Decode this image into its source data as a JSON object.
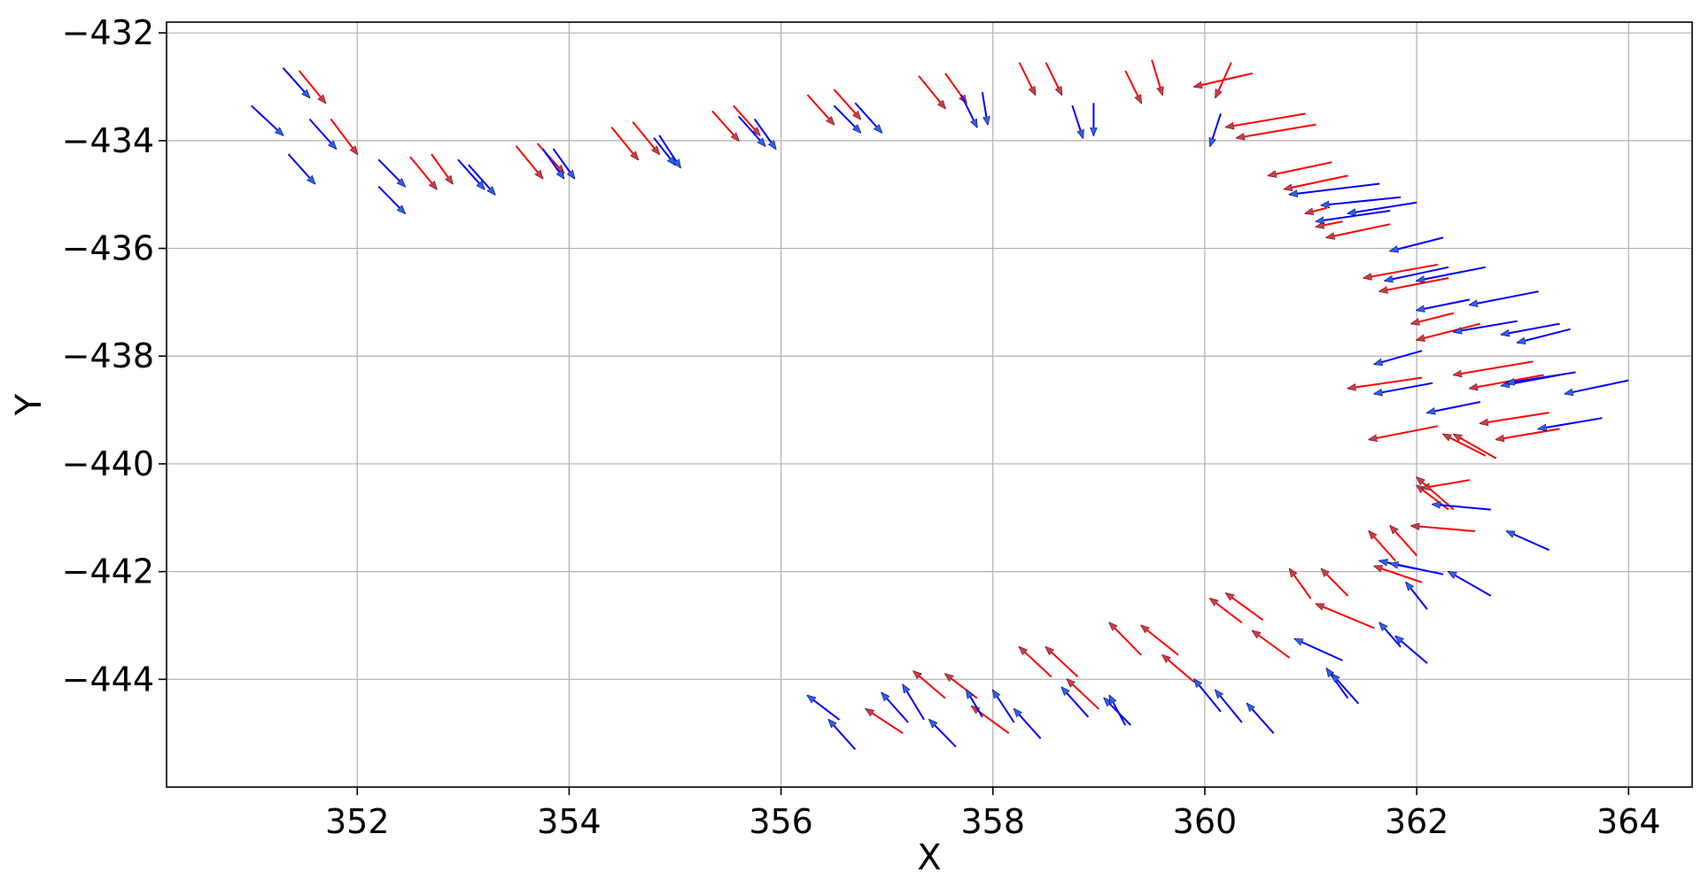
{
  "chart_data": {
    "type": "quiver",
    "xlabel": "X",
    "ylabel": "Y",
    "xlim": [
      350.2,
      364.6
    ],
    "ylim": [
      -446.0,
      -431.8
    ],
    "xticks": [
      352,
      354,
      356,
      358,
      360,
      362,
      364
    ],
    "yticks": [
      -432,
      -434,
      -436,
      -438,
      -440,
      -442,
      -444
    ],
    "ytick_labels": [
      "−432",
      "−434",
      "−436",
      "−438",
      "−440",
      "−442",
      "−444"
    ],
    "grid": true,
    "colors": {
      "red": "#ff0000",
      "blue": "#0000ff",
      "red_head": "#c04050",
      "blue_head": "#3060e0"
    },
    "series": [
      {
        "color": "red",
        "arrows": [
          [
            351.45,
            -432.7,
            351.7,
            -433.3
          ],
          [
            351.75,
            -433.6,
            352.0,
            -434.25
          ],
          [
            352.5,
            -434.3,
            352.75,
            -434.9
          ],
          [
            352.7,
            -434.25,
            352.9,
            -434.8
          ],
          [
            353.5,
            -434.1,
            353.75,
            -434.7
          ],
          [
            353.7,
            -434.05,
            353.95,
            -434.6
          ],
          [
            354.4,
            -433.75,
            354.65,
            -434.35
          ],
          [
            354.6,
            -433.65,
            354.85,
            -434.25
          ],
          [
            355.35,
            -433.45,
            355.6,
            -434.0
          ],
          [
            355.55,
            -433.35,
            355.8,
            -433.9
          ],
          [
            356.25,
            -433.15,
            356.5,
            -433.7
          ],
          [
            356.5,
            -433.05,
            356.75,
            -433.6
          ],
          [
            357.3,
            -432.8,
            357.55,
            -433.4
          ],
          [
            357.55,
            -432.75,
            357.75,
            -433.3
          ],
          [
            358.25,
            -432.55,
            358.4,
            -433.15
          ],
          [
            358.5,
            -432.55,
            358.65,
            -433.15
          ],
          [
            359.25,
            -432.7,
            359.4,
            -433.3
          ],
          [
            359.5,
            -432.5,
            359.6,
            -433.15
          ],
          [
            360.45,
            -432.75,
            359.9,
            -433.0
          ],
          [
            360.25,
            -432.55,
            360.1,
            -433.2
          ],
          [
            360.95,
            -433.5,
            360.2,
            -433.75
          ],
          [
            361.05,
            -433.7,
            360.3,
            -433.95
          ],
          [
            361.2,
            -434.4,
            360.6,
            -434.65
          ],
          [
            361.35,
            -434.65,
            360.75,
            -434.9
          ],
          [
            361.15,
            -435.25,
            360.95,
            -435.35
          ],
          [
            361.3,
            -435.5,
            361.05,
            -435.6
          ],
          [
            361.75,
            -435.55,
            361.15,
            -435.8
          ],
          [
            362.2,
            -436.3,
            361.5,
            -436.55
          ],
          [
            362.3,
            -436.55,
            361.65,
            -436.8
          ],
          [
            362.35,
            -437.2,
            361.95,
            -437.4
          ],
          [
            362.6,
            -437.4,
            362.0,
            -437.7
          ],
          [
            363.1,
            -438.1,
            362.35,
            -438.35
          ],
          [
            363.2,
            -438.35,
            362.5,
            -438.6
          ],
          [
            362.05,
            -438.4,
            361.35,
            -438.6
          ],
          [
            362.2,
            -439.3,
            361.55,
            -439.55
          ],
          [
            363.25,
            -439.05,
            362.6,
            -439.25
          ],
          [
            363.35,
            -439.35,
            362.75,
            -439.55
          ],
          [
            362.75,
            -439.9,
            362.35,
            -439.45
          ],
          [
            362.65,
            -439.85,
            362.25,
            -439.45
          ],
          [
            362.35,
            -440.85,
            362.0,
            -440.25
          ],
          [
            362.3,
            -440.85,
            362.0,
            -440.4
          ],
          [
            362.5,
            -440.3,
            362.05,
            -440.45
          ],
          [
            362.55,
            -441.25,
            361.95,
            -441.15
          ],
          [
            362.0,
            -441.7,
            361.75,
            -441.15
          ],
          [
            361.8,
            -441.8,
            361.55,
            -441.25
          ],
          [
            362.05,
            -442.2,
            361.6,
            -441.9
          ],
          [
            361.0,
            -442.5,
            360.8,
            -441.95
          ],
          [
            361.35,
            -442.45,
            361.1,
            -441.95
          ],
          [
            361.6,
            -443.05,
            361.05,
            -442.6
          ],
          [
            360.35,
            -442.95,
            360.05,
            -442.5
          ],
          [
            360.55,
            -442.9,
            360.2,
            -442.4
          ],
          [
            360.8,
            -443.6,
            360.45,
            -443.1
          ],
          [
            359.4,
            -443.55,
            359.1,
            -442.95
          ],
          [
            359.75,
            -443.55,
            359.4,
            -443.0
          ],
          [
            359.9,
            -444.05,
            359.6,
            -443.55
          ],
          [
            358.55,
            -443.95,
            358.25,
            -443.4
          ],
          [
            358.8,
            -443.95,
            358.5,
            -443.4
          ],
          [
            359.0,
            -444.55,
            358.7,
            -444.0
          ],
          [
            357.55,
            -444.35,
            357.25,
            -443.85
          ],
          [
            357.85,
            -444.35,
            357.55,
            -443.9
          ],
          [
            358.15,
            -445.0,
            357.8,
            -444.5
          ],
          [
            357.15,
            -445.0,
            356.8,
            -444.55
          ]
        ]
      },
      {
        "color": "blue",
        "arrows": [
          [
            351.3,
            -432.65,
            351.55,
            -433.2
          ],
          [
            351.0,
            -433.35,
            351.3,
            -433.9
          ],
          [
            351.55,
            -433.6,
            351.8,
            -434.15
          ],
          [
            351.35,
            -434.25,
            351.6,
            -434.8
          ],
          [
            352.2,
            -434.35,
            352.45,
            -434.85
          ],
          [
            352.2,
            -434.85,
            352.45,
            -435.35
          ],
          [
            352.95,
            -434.35,
            353.2,
            -434.9
          ],
          [
            353.05,
            -434.45,
            353.3,
            -435.0
          ],
          [
            353.75,
            -434.15,
            353.95,
            -434.7
          ],
          [
            353.85,
            -434.15,
            354.05,
            -434.7
          ],
          [
            354.8,
            -433.95,
            355.0,
            -434.45
          ],
          [
            354.85,
            -433.9,
            355.05,
            -434.5
          ],
          [
            355.75,
            -433.6,
            355.95,
            -434.15
          ],
          [
            355.6,
            -433.55,
            355.85,
            -434.1
          ],
          [
            356.5,
            -433.35,
            356.75,
            -433.85
          ],
          [
            356.7,
            -433.3,
            356.95,
            -433.85
          ],
          [
            357.7,
            -433.15,
            357.85,
            -433.75
          ],
          [
            357.9,
            -433.1,
            357.95,
            -433.7
          ],
          [
            358.75,
            -433.35,
            358.85,
            -433.95
          ],
          [
            358.95,
            -433.3,
            358.95,
            -433.9
          ],
          [
            360.15,
            -433.5,
            360.05,
            -434.1
          ],
          [
            361.65,
            -434.8,
            360.8,
            -435.0
          ],
          [
            361.85,
            -435.05,
            361.1,
            -435.2
          ],
          [
            361.75,
            -435.3,
            361.05,
            -435.5
          ],
          [
            362.0,
            -435.15,
            361.35,
            -435.35
          ],
          [
            362.25,
            -435.8,
            361.75,
            -436.05
          ],
          [
            362.3,
            -436.35,
            361.7,
            -436.6
          ],
          [
            362.65,
            -436.35,
            362.0,
            -436.6
          ],
          [
            362.5,
            -436.95,
            362.0,
            -437.15
          ],
          [
            363.15,
            -436.8,
            362.5,
            -437.05
          ],
          [
            362.95,
            -437.35,
            362.35,
            -437.55
          ],
          [
            363.35,
            -437.4,
            362.8,
            -437.6
          ],
          [
            363.45,
            -437.5,
            362.95,
            -437.75
          ],
          [
            362.05,
            -437.9,
            361.6,
            -438.15
          ],
          [
            362.15,
            -438.5,
            361.6,
            -438.7
          ],
          [
            362.6,
            -438.85,
            362.1,
            -439.05
          ],
          [
            363.35,
            -438.35,
            362.8,
            -438.55
          ],
          [
            363.5,
            -438.3,
            362.85,
            -438.5
          ],
          [
            364.0,
            -438.45,
            363.4,
            -438.7
          ],
          [
            363.75,
            -439.15,
            363.15,
            -439.35
          ],
          [
            362.7,
            -440.85,
            362.15,
            -440.75
          ],
          [
            363.25,
            -441.6,
            362.85,
            -441.25
          ],
          [
            362.25,
            -442.05,
            361.65,
            -441.8
          ],
          [
            362.0,
            -441.95,
            361.75,
            -441.85
          ],
          [
            362.7,
            -442.45,
            362.3,
            -442.0
          ],
          [
            362.1,
            -442.7,
            361.9,
            -442.2
          ],
          [
            362.1,
            -443.7,
            361.8,
            -443.2
          ],
          [
            361.85,
            -443.4,
            361.65,
            -442.95
          ],
          [
            361.3,
            -443.65,
            360.85,
            -443.25
          ],
          [
            361.35,
            -444.35,
            361.15,
            -443.8
          ],
          [
            361.45,
            -444.45,
            361.2,
            -443.9
          ],
          [
            360.65,
            -445.0,
            360.4,
            -444.45
          ],
          [
            360.35,
            -444.8,
            360.1,
            -444.2
          ],
          [
            360.15,
            -444.6,
            359.9,
            -444.0
          ],
          [
            359.3,
            -444.85,
            359.05,
            -444.35
          ],
          [
            359.25,
            -444.85,
            359.1,
            -444.3
          ],
          [
            358.9,
            -444.7,
            358.65,
            -444.15
          ],
          [
            358.45,
            -445.1,
            358.2,
            -444.55
          ],
          [
            358.2,
            -444.8,
            358.0,
            -444.2
          ],
          [
            357.9,
            -444.7,
            357.75,
            -444.2
          ],
          [
            357.65,
            -445.25,
            357.4,
            -444.75
          ],
          [
            357.35,
            -444.75,
            357.15,
            -444.1
          ],
          [
            357.2,
            -444.8,
            356.95,
            -444.25
          ],
          [
            356.7,
            -445.3,
            356.45,
            -444.75
          ],
          [
            356.55,
            -444.75,
            356.25,
            -444.3
          ]
        ]
      }
    ]
  }
}
